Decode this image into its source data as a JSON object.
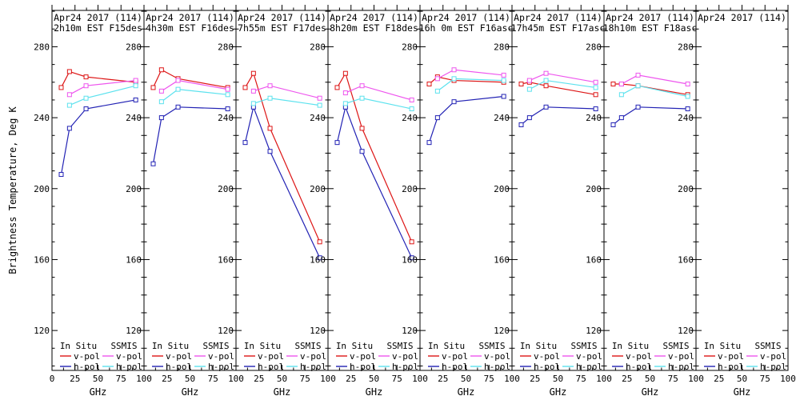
{
  "figure": {
    "y_axis_title": "Brightness Temperature, Deg K",
    "x_axis_title": "GHz",
    "background_color": "#ffffff",
    "axis_color": "#000000"
  },
  "legend": {
    "col1_header": "In Situ",
    "col2_header": "SSMIS",
    "vpol_label": "v-pol",
    "hpol_label": "h-pol"
  },
  "colors": {
    "insitu_vpol": "#dd1515",
    "insitu_hpol": "#2222b4",
    "ssmis_vpol": "#ee55ee",
    "ssmis_hpol": "#5ce2ee"
  },
  "chart_data": {
    "type": "line",
    "xlabel": "GHz",
    "ylabel": "Brightness Temperature, Deg K",
    "xlim": [
      0,
      100
    ],
    "ylim": [
      97.5,
      300.5
    ],
    "x_major_ticks": [
      0,
      25,
      50,
      75,
      100
    ],
    "x_minor_ticks": [
      12.5,
      37.5,
      62.5,
      87.5
    ],
    "y_major_ticks": [
      120,
      160,
      200,
      240,
      280
    ],
    "y_minor_step": 10,
    "grid": false,
    "legend_position": "bottom-inside-each-panel",
    "insitu_freqs_ghz": [
      10,
      19,
      37,
      91
    ],
    "ssmis_freqs_ghz": [
      19,
      37,
      91
    ],
    "panels": [
      {
        "title_line1": "Apr24 2017 (114)",
        "title_line2": "2h10m EST F15des",
        "series": [
          {
            "name": "In Situ v-pol",
            "color_key": "insitu_vpol",
            "x": [
              10,
              19,
              37,
              91
            ],
            "y": [
              257,
              266,
              263,
              260
            ]
          },
          {
            "name": "In Situ h-pol",
            "color_key": "insitu_hpol",
            "x": [
              10,
              19,
              37,
              91
            ],
            "y": [
              208,
              234,
              245,
              250
            ]
          },
          {
            "name": "SSMIS v-pol",
            "color_key": "ssmis_vpol",
            "x": [
              19,
              37,
              91
            ],
            "y": [
              253,
              258,
              261
            ]
          },
          {
            "name": "SSMIS h-pol",
            "color_key": "ssmis_hpol",
            "x": [
              19,
              37,
              91
            ],
            "y": [
              247,
              251,
              258
            ]
          }
        ]
      },
      {
        "title_line1": "Apr24 2017 (114)",
        "title_line2": "4h30m EST F16des",
        "series": [
          {
            "name": "In Situ v-pol",
            "color_key": "insitu_vpol",
            "x": [
              10,
              19,
              37,
              91
            ],
            "y": [
              257,
              267,
              262,
              257
            ]
          },
          {
            "name": "In Situ h-pol",
            "color_key": "insitu_hpol",
            "x": [
              10,
              19,
              37,
              91
            ],
            "y": [
              214,
              240,
              246,
              245
            ]
          },
          {
            "name": "SSMIS v-pol",
            "color_key": "ssmis_vpol",
            "x": [
              19,
              37,
              91
            ],
            "y": [
              255,
              261,
              256
            ]
          },
          {
            "name": "SSMIS h-pol",
            "color_key": "ssmis_hpol",
            "x": [
              19,
              37,
              91
            ],
            "y": [
              249,
              256,
              253
            ]
          }
        ]
      },
      {
        "title_line1": "Apr24 2017 (114)",
        "title_line2": "7h55m EST F17des",
        "series": [
          {
            "name": "In Situ v-pol",
            "color_key": "insitu_vpol",
            "x": [
              10,
              19,
              37,
              91
            ],
            "y": [
              257,
              265,
              234,
              170
            ]
          },
          {
            "name": "In Situ h-pol",
            "color_key": "insitu_hpol",
            "x": [
              10,
              19,
              37,
              91
            ],
            "y": [
              226,
              246,
              221,
              161
            ]
          },
          {
            "name": "SSMIS v-pol",
            "color_key": "ssmis_vpol",
            "x": [
              19,
              37,
              91
            ],
            "y": [
              255,
              258,
              251
            ]
          },
          {
            "name": "SSMIS h-pol",
            "color_key": "ssmis_hpol",
            "x": [
              19,
              37,
              91
            ],
            "y": [
              248,
              251,
              247
            ]
          }
        ]
      },
      {
        "title_line1": "Apr24 2017 (114)",
        "title_line2": "8h20m EST F18des",
        "series": [
          {
            "name": "In Situ v-pol",
            "color_key": "insitu_vpol",
            "x": [
              10,
              19,
              37,
              91
            ],
            "y": [
              257,
              265,
              234,
              170
            ]
          },
          {
            "name": "In Situ h-pol",
            "color_key": "insitu_hpol",
            "x": [
              10,
              19,
              37,
              91
            ],
            "y": [
              226,
              246,
              221,
              161
            ]
          },
          {
            "name": "SSMIS v-pol",
            "color_key": "ssmis_vpol",
            "x": [
              19,
              37,
              91
            ],
            "y": [
              254,
              258,
              250
            ]
          },
          {
            "name": "SSMIS h-pol",
            "color_key": "ssmis_hpol",
            "x": [
              19,
              37,
              91
            ],
            "y": [
              248,
              251,
              245
            ]
          }
        ]
      },
      {
        "title_line1": "Apr24 2017 (114)",
        "title_line2": "16h 0m EST F16asc",
        "series": [
          {
            "name": "In Situ v-pol",
            "color_key": "insitu_vpol",
            "x": [
              10,
              19,
              37,
              91
            ],
            "y": [
              259,
              263,
              261,
              260
            ]
          },
          {
            "name": "In Situ h-pol",
            "color_key": "insitu_hpol",
            "x": [
              10,
              19,
              37,
              91
            ],
            "y": [
              226,
              240,
              249,
              252
            ]
          },
          {
            "name": "SSMIS v-pol",
            "color_key": "ssmis_vpol",
            "x": [
              19,
              37,
              91
            ],
            "y": [
              262,
              267,
              264
            ]
          },
          {
            "name": "SSMIS h-pol",
            "color_key": "ssmis_hpol",
            "x": [
              19,
              37,
              91
            ],
            "y": [
              255,
              262,
              261
            ]
          }
        ]
      },
      {
        "title_line1": "Apr24 2017 (114)",
        "title_line2": "17h45m EST F17asc",
        "series": [
          {
            "name": "In Situ v-pol",
            "color_key": "insitu_vpol",
            "x": [
              10,
              19,
              37,
              91
            ],
            "y": [
              259,
              260,
              258,
              253
            ]
          },
          {
            "name": "In Situ h-pol",
            "color_key": "insitu_hpol",
            "x": [
              10,
              19,
              37,
              91
            ],
            "y": [
              236,
              240,
              246,
              245
            ]
          },
          {
            "name": "SSMIS v-pol",
            "color_key": "ssmis_vpol",
            "x": [
              19,
              37,
              91
            ],
            "y": [
              261,
              265,
              260
            ]
          },
          {
            "name": "SSMIS h-pol",
            "color_key": "ssmis_hpol",
            "x": [
              19,
              37,
              91
            ],
            "y": [
              256,
              261,
              257
            ]
          }
        ]
      },
      {
        "title_line1": "Apr24 2017 (114)",
        "title_line2": "18h10m EST F18asc",
        "series": [
          {
            "name": "In Situ v-pol",
            "color_key": "insitu_vpol",
            "x": [
              10,
              19,
              37,
              91
            ],
            "y": [
              259,
              259,
              258,
              253
            ]
          },
          {
            "name": "In Situ h-pol",
            "color_key": "insitu_hpol",
            "x": [
              10,
              19,
              37,
              91
            ],
            "y": [
              236,
              240,
              246,
              245
            ]
          },
          {
            "name": "SSMIS v-pol",
            "color_key": "ssmis_vpol",
            "x": [
              19,
              37,
              91
            ],
            "y": [
              259,
              264,
              259
            ]
          },
          {
            "name": "SSMIS h-pol",
            "color_key": "ssmis_hpol",
            "x": [
              19,
              37,
              91
            ],
            "y": [
              253,
              258,
              252
            ]
          }
        ]
      },
      {
        "title_line1": "Apr24 2017 (114)",
        "title_line2": "",
        "series": []
      }
    ]
  }
}
